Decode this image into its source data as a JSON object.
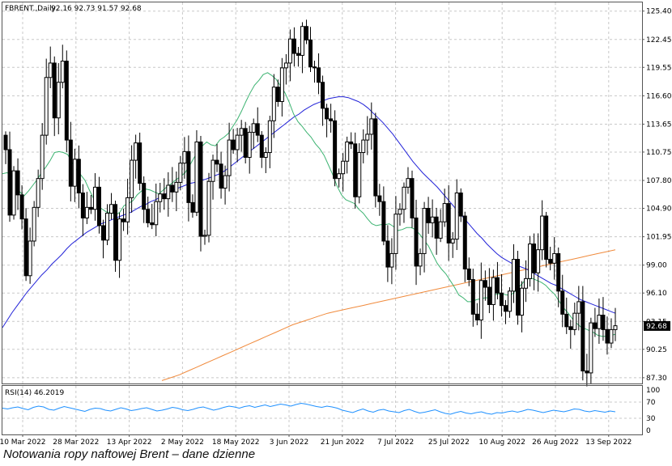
{
  "chart_data": {
    "type": "candlestick",
    "symbol_header": "FBRENT.,Daily",
    "ohlc_header": "92.16 92.73 91.57 92.68",
    "last_price_label": "92.68",
    "x_tick_labels": [
      "10 Mar 2022",
      "28 Mar 2022",
      "13 Apr 2022",
      "2 May 2022",
      "18 May 2022",
      "3 Jun 2022",
      "21 Jun 2022",
      "7 Jul 2022",
      "25 Jul 2022",
      "10 Aug 2022",
      "26 Aug 2022",
      "13 Sep 2022"
    ],
    "y_tick_labels": [
      "125.40",
      "122.45",
      "119.55",
      "116.60",
      "113.65",
      "110.75",
      "107.80",
      "104.90",
      "101.95",
      "99.00",
      "96.10",
      "93.15",
      "90.25",
      "87.30"
    ],
    "ylim": [
      86.7,
      126.3
    ],
    "grid": true,
    "colors": {
      "bull": "#ffffff",
      "bear": "#000000",
      "ma_fast": "#3cb371",
      "ma_mid": "#2323d8",
      "ma_slow": "#f08a3c",
      "rsi": "#1e90ff",
      "grid": "#c8c8c8"
    },
    "close": [
      111.0,
      104.2,
      108.8,
      106.3,
      103.8,
      97.9,
      101.5,
      105.0,
      108.0,
      112.5,
      118.5,
      120.0,
      114.3,
      118.0,
      120.2,
      112.0,
      107.2,
      110.0,
      106.5,
      103.9,
      105.0,
      104.8,
      107.1,
      103.1,
      101.6,
      104.4,
      105.3,
      99.5,
      103.8,
      103.5,
      106.0,
      109.9,
      111.7,
      107.5,
      104.8,
      103.4,
      103.2,
      105.6,
      106.4,
      105.9,
      107.3,
      106.6,
      107.6,
      109.6,
      110.8,
      105.5,
      104.5,
      111.8,
      102.0,
      102.1,
      107.7,
      109.9,
      109.5,
      107.0,
      108.3,
      112.0,
      111.0,
      112.5,
      113.2,
      110.2,
      112.8,
      113.7,
      112.5,
      110.2,
      110.7,
      114.0,
      117.5,
      116.0,
      119.5,
      120.0,
      122.5,
      121.0,
      120.8,
      123.8,
      122.4,
      119.6,
      119.5,
      118.0,
      115.3,
      114.2,
      114.0,
      108.0,
      108.5,
      109.8,
      111.8,
      111.6,
      106.1,
      110.7,
      112.0,
      112.6,
      114.2,
      106.2,
      105.6,
      101.5,
      98.8,
      100.2,
      104.3,
      104.8,
      107.1,
      108.0,
      103.9,
      98.9,
      100.2,
      104.9,
      103.4,
      104.0,
      101.8,
      103.5,
      105.4,
      101.3,
      101.7,
      106.5,
      104.1,
      98.6,
      97.5,
      93.9,
      93.3,
      97.4,
      96.7,
      94.9,
      97.7,
      96.1,
      94.8,
      94.2,
      96.3,
      99.6,
      93.8,
      96.6,
      97.6,
      101.2,
      98.2,
      100.6,
      104.1,
      99.6,
      99.2,
      100.2,
      96.3,
      93.9,
      92.6,
      92.3,
      94.0,
      95.2,
      88.0,
      87.8,
      93.0,
      92.4,
      93.8,
      92.3,
      90.9,
      92.3,
      92.7
    ],
    "ma_fast": [
      108.5,
      108.6,
      108.5,
      107.5,
      106.6,
      106.2,
      106.7,
      107.3,
      107.9,
      108.6,
      109.2,
      109.9,
      110.7,
      110.8,
      110.7,
      110.5,
      109.7,
      109.0,
      108.4,
      107.8,
      106.8,
      105.9,
      105.1,
      104.8,
      104.5,
      104.5,
      104.2,
      104.5,
      105.2,
      105.4,
      105.7,
      106.3,
      106.7,
      106.9,
      106.8,
      106.6,
      106.4,
      106.8,
      107.2,
      107.5,
      107.9,
      108.2,
      108.6,
      109.3,
      110.1,
      110.8,
      111.4,
      111.8,
      111.5,
      111.4,
      112.0,
      112.3,
      112.7,
      113.4,
      114.1,
      115.0,
      116.0,
      116.9,
      117.7,
      118.2,
      118.8,
      119.0,
      118.7,
      118.3,
      117.6,
      116.9,
      115.9,
      114.7,
      113.9,
      113.4,
      112.8,
      112.3,
      111.6,
      111.1,
      110.4,
      109.4,
      108.4,
      107.2,
      106.3,
      105.8,
      105.6,
      105.4,
      104.8,
      104.4,
      103.8,
      103.3,
      103.1,
      103.2,
      103.2,
      103.3,
      103.0,
      102.6,
      102.7,
      102.9,
      102.9,
      102.7,
      102.2,
      101.6,
      101.0,
      100.1,
      99.2,
      98.6,
      98.1,
      97.4,
      96.7,
      95.9,
      95.6,
      95.2,
      95.2,
      95.4,
      95.5,
      95.6,
      95.6,
      95.9,
      96.0,
      96.0,
      95.9,
      95.9,
      96.3,
      96.8,
      97.3,
      97.6,
      97.6,
      97.4,
      97.2,
      96.9,
      96.4,
      96.0,
      95.3,
      94.6,
      94.1,
      93.5,
      93.0,
      92.6,
      92.4,
      92.2,
      92.0,
      91.7,
      91.6,
      91.6,
      91.7,
      91.8
    ],
    "ma_mid": [
      92.5,
      93.3,
      94.1,
      94.8,
      95.5,
      96.2,
      96.8,
      97.4,
      98.0,
      98.5,
      99.1,
      99.6,
      100.1,
      100.7,
      101.2,
      101.6,
      102.0,
      102.4,
      102.7,
      103.0,
      103.3,
      103.5,
      103.7,
      103.9,
      104.1,
      104.3,
      104.5,
      104.8,
      105.1,
      105.3,
      105.6,
      105.8,
      106.1,
      106.4,
      106.7,
      106.9,
      107.1,
      107.3,
      107.5,
      107.6,
      107.8,
      107.9,
      108.1,
      108.3,
      108.5,
      108.8,
      109.2,
      109.6,
      110.0,
      110.4,
      110.8,
      111.2,
      111.6,
      112.0,
      112.4,
      112.8,
      113.2,
      113.6,
      114.0,
      114.4,
      114.7,
      115.1,
      115.4,
      115.7,
      115.9,
      116.1,
      116.3,
      116.4,
      116.5,
      116.5,
      116.4,
      116.2,
      116.0,
      115.7,
      115.3,
      114.8,
      114.3,
      113.8,
      113.2,
      112.6,
      111.9,
      111.2,
      110.5,
      109.8,
      109.2,
      108.6,
      108.1,
      107.6,
      107.1,
      106.5,
      105.9,
      105.3,
      104.7,
      104.1,
      103.5,
      102.9,
      102.3,
      101.8,
      101.2,
      100.7,
      100.2,
      99.8,
      99.5,
      99.2,
      99.0,
      98.8,
      98.6,
      98.3,
      98.0,
      97.7,
      97.4,
      97.1,
      96.9,
      96.6,
      96.3,
      96.0,
      95.7,
      95.4,
      95.2,
      95.0,
      94.8,
      94.6,
      94.4,
      94.2,
      94.0
    ],
    "ma_slow": [
      87.0,
      87.3,
      87.6,
      88.0,
      88.4,
      88.8,
      89.2,
      89.6,
      90.0,
      90.4,
      90.8,
      91.2,
      91.6,
      92.0,
      92.4,
      92.8,
      93.1,
      93.4,
      93.7,
      94.0,
      94.2,
      94.4,
      94.6,
      94.8,
      95.0,
      95.2,
      95.4,
      95.6,
      95.8,
      96.0,
      96.2,
      96.4,
      96.6,
      96.8,
      97.0,
      97.2,
      97.4,
      97.6,
      97.8,
      98.0,
      98.2,
      98.4,
      98.6,
      98.8,
      99.0,
      99.2,
      99.4,
      99.6,
      99.8,
      100.0,
      100.2,
      100.4,
      100.6
    ],
    "rsi_label": "RSI(14) 46.2019",
    "rsi_ylim": [
      0,
      100
    ],
    "rsi_tick_labels": [
      "100",
      "70",
      "30",
      "0"
    ],
    "rsi": [
      55,
      53,
      56,
      58,
      54,
      51,
      57,
      60,
      58,
      52,
      50,
      55,
      59,
      56,
      53,
      50,
      47,
      52,
      55,
      54,
      50,
      48,
      52,
      56,
      53,
      49,
      51,
      54,
      56,
      52,
      48,
      50,
      53,
      57,
      55,
      51,
      49,
      52,
      56,
      58,
      54,
      50,
      53,
      57,
      60,
      58,
      55,
      59,
      61,
      57,
      60,
      63,
      59,
      62,
      65,
      63,
      60,
      64,
      67,
      65,
      62,
      59,
      57,
      60,
      58,
      55,
      50,
      47,
      44,
      49,
      53,
      48,
      45,
      50,
      52,
      48,
      46,
      44,
      49,
      52,
      47,
      43,
      45,
      48,
      51,
      46,
      42,
      40,
      44,
      47,
      43,
      41,
      44,
      46,
      42,
      40,
      44,
      43,
      46,
      48,
      45,
      48,
      52,
      50,
      47,
      44,
      47,
      50,
      48,
      46,
      49,
      53,
      52,
      48,
      46,
      49,
      47,
      45,
      48,
      46
    ]
  },
  "caption": "Notowania ropy naftowej Brent – dane dzienne"
}
